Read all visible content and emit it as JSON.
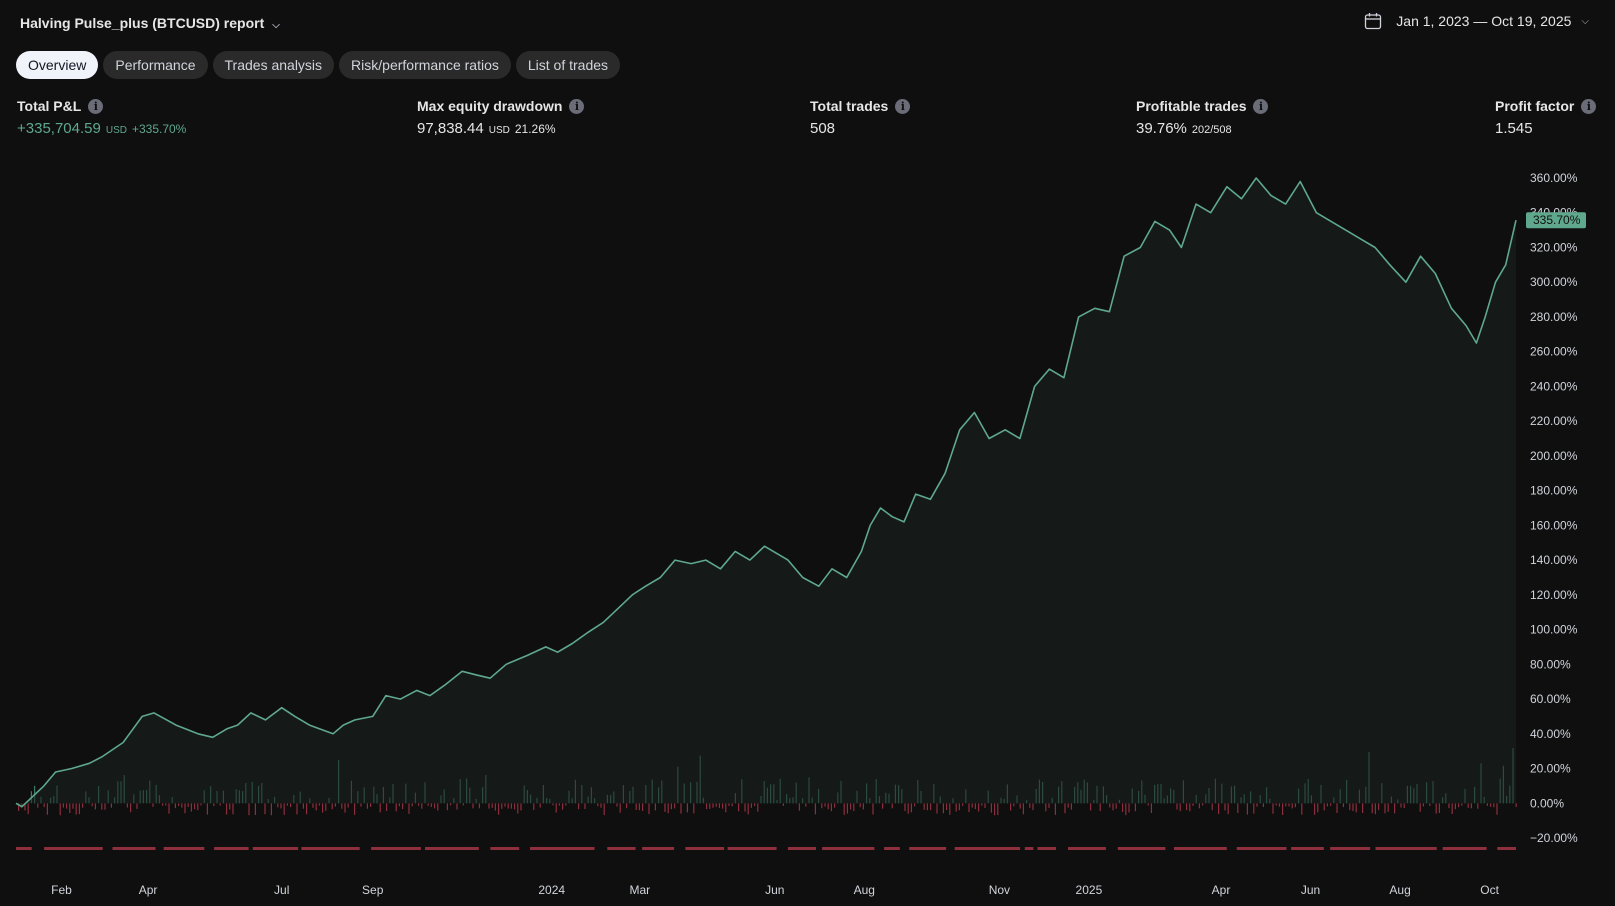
{
  "header": {
    "report_title": "Halving Pulse_plus (BTCUSD) report",
    "date_range": "Jan 1, 2023 — Oct 19, 2025"
  },
  "tabs": [
    "Overview",
    "Performance",
    "Trades analysis",
    "Risk/performance ratios",
    "List of trades"
  ],
  "active_tab": "Overview",
  "stats": {
    "total_pnl": {
      "label": "Total P&L",
      "value": "+335,704.59",
      "unit": "USD",
      "percent": "+335.70%"
    },
    "max_drawdown": {
      "label": "Max equity drawdown",
      "value": "97,838.44",
      "unit": "USD",
      "percent": "21.26%"
    },
    "total_trades": {
      "label": "Total trades",
      "value": "508"
    },
    "profitable_trades": {
      "label": "Profitable trades",
      "value": "39.76%",
      "sub": "202/508"
    },
    "profit_factor": {
      "label": "Profit factor",
      "value": "1.545"
    }
  },
  "colors": {
    "background": "#0f0f0f",
    "equity_line": "#5fa88e",
    "positive_bar": "#3f7a66",
    "negative_bar": "#8e2f3d",
    "tab_active_bg": "#f0f3fa",
    "tab_bg": "#2a2a2a"
  },
  "icons": {
    "title_dropdown": "chevron-down-icon",
    "calendar": "calendar-icon",
    "info": "info-icon"
  },
  "chart_data": {
    "type": "area",
    "y_unit": "%",
    "ylim": [
      -20,
      360
    ],
    "y_ticks": [
      "360.00%",
      "340.00%",
      "320.00%",
      "300.00%",
      "280.00%",
      "260.00%",
      "240.00%",
      "220.00%",
      "200.00%",
      "180.00%",
      "160.00%",
      "140.00%",
      "120.00%",
      "100.00%",
      "80.00%",
      "60.00%",
      "40.00%",
      "20.00%",
      "0.00%",
      "−20.00%"
    ],
    "x_ticks": [
      {
        "label": "Feb",
        "date": "2023-02-01"
      },
      {
        "label": "Apr",
        "date": "2023-04-01"
      },
      {
        "label": "Jul",
        "date": "2023-07-01"
      },
      {
        "label": "Sep",
        "date": "2023-09-01"
      },
      {
        "label": "2024",
        "date": "2024-01-01"
      },
      {
        "label": "Mar",
        "date": "2024-03-01"
      },
      {
        "label": "Jun",
        "date": "2024-06-01"
      },
      {
        "label": "Aug",
        "date": "2024-08-01"
      },
      {
        "label": "Nov",
        "date": "2024-11-01"
      },
      {
        "label": "2025",
        "date": "2025-01-01"
      },
      {
        "label": "Apr",
        "date": "2025-04-01"
      },
      {
        "label": "Jun",
        "date": "2025-06-01"
      },
      {
        "label": "Aug",
        "date": "2025-08-01"
      },
      {
        "label": "Oct",
        "date": "2025-10-01"
      }
    ],
    "x_range": [
      "2023-01-01",
      "2025-10-19"
    ],
    "last_value_label": "335.70%",
    "series": [
      {
        "kind": "line",
        "points": [
          [
            "2023-01-01",
            0
          ],
          [
            "2023-01-05",
            -2
          ],
          [
            "2023-01-10",
            2
          ],
          [
            "2023-01-20",
            10
          ],
          [
            "2023-01-28",
            18
          ],
          [
            "2023-02-08",
            20
          ],
          [
            "2023-02-20",
            23
          ],
          [
            "2023-03-01",
            27
          ],
          [
            "2023-03-15",
            35
          ],
          [
            "2023-03-28",
            50
          ],
          [
            "2023-04-05",
            52
          ],
          [
            "2023-04-20",
            45
          ],
          [
            "2023-05-05",
            40
          ],
          [
            "2023-05-15",
            38
          ],
          [
            "2023-05-25",
            43
          ],
          [
            "2023-06-01",
            45
          ],
          [
            "2023-06-10",
            52
          ],
          [
            "2023-06-20",
            48
          ],
          [
            "2023-07-01",
            55
          ],
          [
            "2023-07-10",
            50
          ],
          [
            "2023-07-20",
            45
          ],
          [
            "2023-08-05",
            40
          ],
          [
            "2023-08-12",
            45
          ],
          [
            "2023-08-20",
            48
          ],
          [
            "2023-09-01",
            50
          ],
          [
            "2023-09-10",
            62
          ],
          [
            "2023-09-20",
            60
          ],
          [
            "2023-10-01",
            65
          ],
          [
            "2023-10-10",
            62
          ],
          [
            "2023-10-20",
            68
          ],
          [
            "2023-11-01",
            76
          ],
          [
            "2023-11-10",
            74
          ],
          [
            "2023-11-20",
            72
          ],
          [
            "2023-12-01",
            80
          ],
          [
            "2023-12-15",
            85
          ],
          [
            "2023-12-28",
            90
          ],
          [
            "2024-01-05",
            87
          ],
          [
            "2024-01-15",
            92
          ],
          [
            "2024-01-25",
            98
          ],
          [
            "2024-02-05",
            104
          ],
          [
            "2024-02-15",
            112
          ],
          [
            "2024-02-25",
            120
          ],
          [
            "2024-03-05",
            125
          ],
          [
            "2024-03-15",
            130
          ],
          [
            "2024-03-25",
            140
          ],
          [
            "2024-04-05",
            138
          ],
          [
            "2024-04-15",
            140
          ],
          [
            "2024-04-25",
            135
          ],
          [
            "2024-05-05",
            145
          ],
          [
            "2024-05-15",
            140
          ],
          [
            "2024-05-25",
            148
          ],
          [
            "2024-06-10",
            140
          ],
          [
            "2024-06-20",
            130
          ],
          [
            "2024-07-01",
            125
          ],
          [
            "2024-07-10",
            135
          ],
          [
            "2024-07-20",
            130
          ],
          [
            "2024-07-30",
            145
          ],
          [
            "2024-08-05",
            160
          ],
          [
            "2024-08-12",
            170
          ],
          [
            "2024-08-20",
            165
          ],
          [
            "2024-08-28",
            162
          ],
          [
            "2024-09-05",
            178
          ],
          [
            "2024-09-15",
            175
          ],
          [
            "2024-09-25",
            190
          ],
          [
            "2024-10-05",
            215
          ],
          [
            "2024-10-15",
            225
          ],
          [
            "2024-10-25",
            210
          ],
          [
            "2024-11-05",
            215
          ],
          [
            "2024-11-15",
            210
          ],
          [
            "2024-11-25",
            240
          ],
          [
            "2024-12-05",
            250
          ],
          [
            "2024-12-15",
            245
          ],
          [
            "2024-12-25",
            280
          ],
          [
            "2025-01-05",
            285
          ],
          [
            "2025-01-15",
            283
          ],
          [
            "2025-01-25",
            315
          ],
          [
            "2025-02-05",
            320
          ],
          [
            "2025-02-15",
            335
          ],
          [
            "2025-02-25",
            330
          ],
          [
            "2025-03-05",
            320
          ],
          [
            "2025-03-15",
            345
          ],
          [
            "2025-03-25",
            340
          ],
          [
            "2025-04-05",
            355
          ],
          [
            "2025-04-15",
            348
          ],
          [
            "2025-04-25",
            360
          ],
          [
            "2025-05-05",
            350
          ],
          [
            "2025-05-15",
            345
          ],
          [
            "2025-05-25",
            358
          ],
          [
            "2025-06-05",
            340
          ],
          [
            "2025-06-15",
            335
          ],
          [
            "2025-06-25",
            330
          ],
          [
            "2025-07-05",
            325
          ],
          [
            "2025-07-15",
            320
          ],
          [
            "2025-07-25",
            310
          ],
          [
            "2025-08-05",
            300
          ],
          [
            "2025-08-15",
            315
          ],
          [
            "2025-08-25",
            305
          ],
          [
            "2025-09-05",
            285
          ],
          [
            "2025-09-15",
            275
          ],
          [
            "2025-09-22",
            265
          ],
          [
            "2025-09-28",
            280
          ],
          [
            "2025-10-05",
            300
          ],
          [
            "2025-10-12",
            310
          ],
          [
            "2025-10-19",
            335.7
          ]
        ]
      },
      {
        "kind": "bars",
        "note": "Per-trade P&L (%)",
        "values": []
      }
    ]
  }
}
